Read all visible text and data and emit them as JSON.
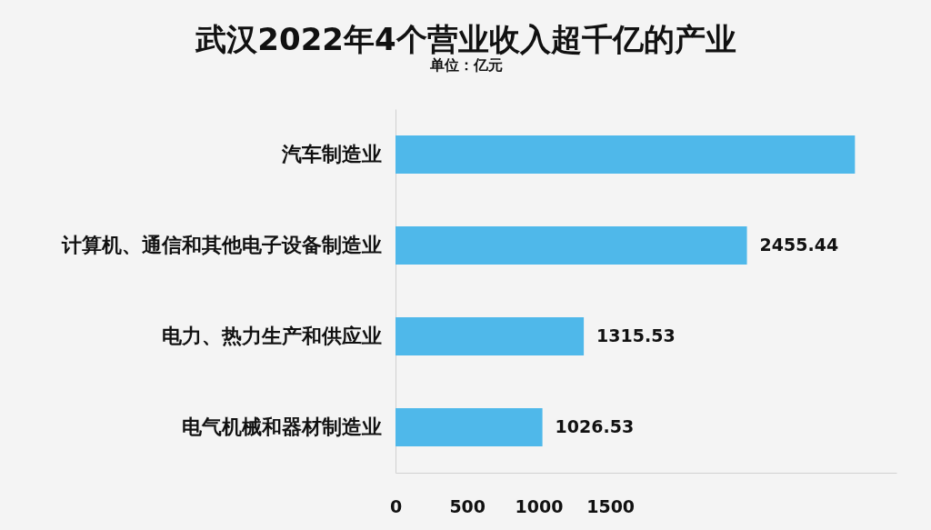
{
  "chart_data": {
    "type": "bar",
    "orientation": "horizontal",
    "title": "武汉2022年4个营业收入超千亿的产业",
    "subtitle": "单位：亿元",
    "categories": [
      "汽车制造业",
      "计算机、通信和其他电子设备制造业",
      "电力、热力生产和供应业",
      "电气机械和器材制造业"
    ],
    "values": [
      3210,
      2455.44,
      1315.53,
      1026.53
    ],
    "value_labels": [
      null,
      "2455.44",
      "1315.53",
      "1026.53"
    ],
    "color": "#4fb8ea",
    "xlim": [
      0,
      3500
    ],
    "xticks": [
      0,
      500,
      1000,
      1500
    ]
  }
}
